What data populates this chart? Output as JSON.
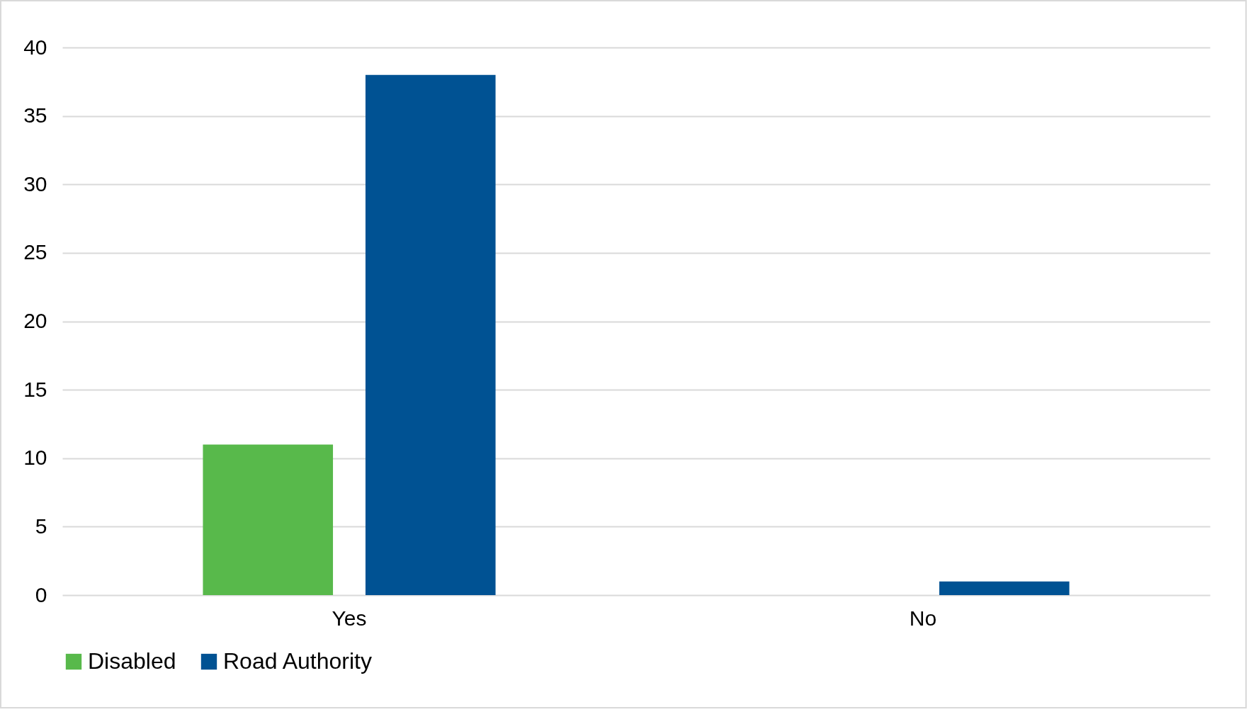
{
  "chart_data": {
    "type": "bar",
    "categories": [
      "Yes",
      "No"
    ],
    "series": [
      {
        "name": "Disabled",
        "color": "#58b94b",
        "values": [
          11,
          0
        ]
      },
      {
        "name": "Road Authority",
        "color": "#005293",
        "values": [
          38,
          1
        ]
      }
    ],
    "ylim": [
      0,
      40
    ],
    "yticks": [
      0,
      5,
      10,
      15,
      20,
      25,
      30,
      35,
      40
    ],
    "grid": "y",
    "legend": "bottom"
  }
}
